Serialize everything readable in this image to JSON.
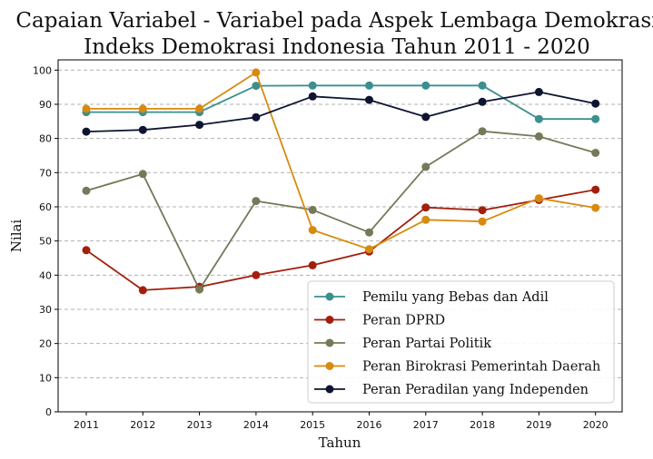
{
  "chart_data": {
    "type": "line",
    "title_lines": [
      "Capaian Variabel - Variabel pada Aspek Lembaga Demokrasi",
      "Indeks Demokrasi Indonesia Tahun 2011 - 2020"
    ],
    "xlabel": "Tahun",
    "ylabel": "Nilai",
    "x": [
      "2011",
      "2012",
      "2013",
      "2014",
      "2015",
      "2016",
      "2017",
      "2018",
      "2019",
      "2020"
    ],
    "ylim": [
      0,
      103
    ],
    "yticks": [
      "0",
      "10",
      "20",
      "30",
      "40",
      "50",
      "60",
      "70",
      "80",
      "90",
      "100"
    ],
    "grid": "horizontal dashed",
    "legend_position": "lower-right",
    "series": [
      {
        "name": "Pemilu yang Bebas dan Adil",
        "color": "#3a8f8f",
        "values": [
          87.7,
          87.7,
          87.7,
          95.4,
          95.5,
          95.5,
          95.5,
          95.5,
          85.7,
          85.7
        ]
      },
      {
        "name": "Peran DPRD",
        "color": "#a31f0c",
        "values": [
          47.3,
          35.6,
          36.6,
          40.0,
          42.9,
          46.9,
          59.8,
          59.0,
          62.0,
          65.0
        ]
      },
      {
        "name": "Peran Partai Politik",
        "color": "#75795a",
        "values": [
          64.7,
          69.6,
          35.8,
          61.7,
          59.1,
          52.5,
          71.7,
          82.1,
          80.6,
          75.8
        ]
      },
      {
        "name": "Peran Birokrasi Pemerintah Daerah",
        "color": "#d88a0e",
        "values": [
          88.7,
          88.7,
          88.7,
          99.3,
          53.2,
          47.6,
          56.2,
          55.7,
          62.5,
          59.7
        ]
      },
      {
        "name": "Peran Peradilan yang Independen",
        "color": "#0e1530",
        "values": [
          82.0,
          82.5,
          84.0,
          86.2,
          92.3,
          91.3,
          86.3,
          90.7,
          93.6,
          90.2
        ]
      }
    ]
  }
}
